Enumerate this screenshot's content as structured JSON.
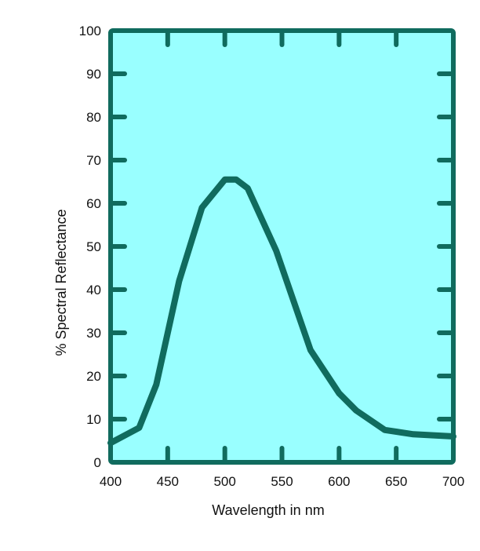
{
  "chart_data": {
    "type": "line",
    "title": "",
    "xlabel": "Wavelength in nm",
    "ylabel": "% Spectral Reflectance",
    "xlim": [
      400,
      700
    ],
    "ylim": [
      0,
      100
    ],
    "x_ticks": [
      "400",
      "450",
      "500",
      "550",
      "600",
      "650",
      "700"
    ],
    "y_ticks": [
      "0",
      "10",
      "20",
      "30",
      "40",
      "50",
      "60",
      "70",
      "80",
      "90",
      "100"
    ],
    "grid": false,
    "legend": "none",
    "series": [
      {
        "x": [
          400,
          425,
          440,
          460,
          480,
          500,
          510,
          520,
          545,
          575,
          600,
          615,
          640,
          665,
          700
        ],
        "y": [
          4.5,
          8,
          18,
          42,
          59,
          65.5,
          65.5,
          63.5,
          49,
          26,
          16,
          12,
          7.5,
          6.5,
          6
        ]
      }
    ],
    "colors": {
      "plot_background": "#99FFFF",
      "frame": "#106B5E",
      "line": "#106B5E",
      "text": "#111111"
    }
  }
}
